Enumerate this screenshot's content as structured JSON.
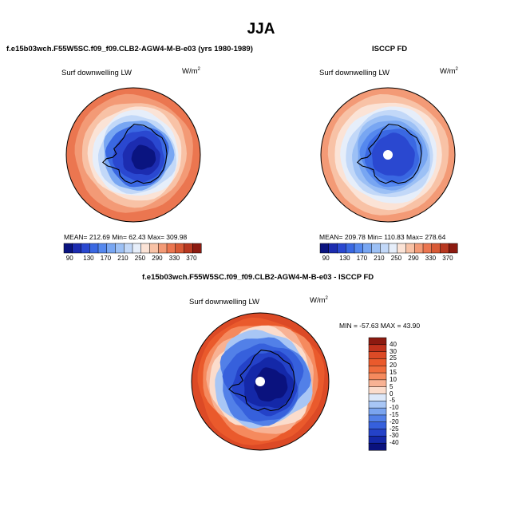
{
  "title": "JJA",
  "panels": {
    "model": {
      "title": "f.e15b03wch.F55W5SC.f09_f09.CLB2-AGW4-M-B-e03 (yrs 1980-1989)",
      "left_label": "Surf downwelling LW",
      "unit_label": "W/m",
      "unit_exp": "2",
      "stats": "MEAN= 212.69   Min=   62.43   Max= 309.98"
    },
    "obs": {
      "title": "ISCCP FD",
      "left_label": "Surf downwelling LW",
      "unit_label": "W/m",
      "unit_exp": "2",
      "stats": "MEAN= 209.78   Min= 110.83   Max= 278.64"
    },
    "diff": {
      "title": "f.e15b03wch.F55W5SC.f09_f09.CLB2-AGW4-M-B-e03 - ISCCP FD",
      "left_label": "Surf downwelling LW",
      "unit_label": "W/m",
      "unit_exp": "2",
      "minmax": "MIN = -57.63  MAX =  43.90"
    }
  },
  "chart_data": [
    {
      "type": "heatmap",
      "projection": "south-polar-stereographic",
      "title": "f.e15b03wch.F55W5SC.f09_f09.CLB2-AGW4-M-B-e03 (yrs 1980-1989)",
      "variable": "Surf downwelling LW",
      "units": "W/m2",
      "mean": 212.69,
      "min": 62.43,
      "max": 309.98,
      "colorbar": {
        "orientation": "horizontal",
        "levels": [
          90,
          110,
          130,
          150,
          170,
          190,
          210,
          230,
          250,
          270,
          290,
          310,
          330,
          350,
          370
        ],
        "tick_labels": [
          "90",
          "130",
          "170",
          "210",
          "250",
          "290",
          "330",
          "370"
        ],
        "colors": [
          "#0a1480",
          "#1c2cb0",
          "#2a48d0",
          "#3a68e2",
          "#5588ee",
          "#78a6f2",
          "#9cc0f5",
          "#c2d8f8",
          "#e6eefa",
          "#fbe3d6",
          "#f8c2a6",
          "#f39a76",
          "#eb7650",
          "#d85a36",
          "#b83820",
          "#8c1a10"
        ]
      }
    },
    {
      "type": "heatmap",
      "projection": "south-polar-stereographic",
      "title": "ISCCP FD",
      "variable": "Surf downwelling LW",
      "units": "W/m2",
      "mean": 209.78,
      "min": 110.83,
      "max": 278.64,
      "colorbar": {
        "orientation": "horizontal",
        "levels": [
          90,
          110,
          130,
          150,
          170,
          190,
          210,
          230,
          250,
          270,
          290,
          310,
          330,
          350,
          370
        ],
        "tick_labels": [
          "90",
          "130",
          "170",
          "210",
          "250",
          "290",
          "330",
          "370"
        ],
        "colors": [
          "#0a1480",
          "#1c2cb0",
          "#2a48d0",
          "#3a68e2",
          "#5588ee",
          "#78a6f2",
          "#9cc0f5",
          "#c2d8f8",
          "#e6eefa",
          "#fbe3d6",
          "#f8c2a6",
          "#f39a76",
          "#eb7650",
          "#d85a36",
          "#b83820",
          "#8c1a10"
        ]
      }
    },
    {
      "type": "heatmap",
      "projection": "south-polar-stereographic",
      "title": "f.e15b03wch.F55W5SC.f09_f09.CLB2-AGW4-M-B-e03 - ISCCP FD",
      "variable": "Surf downwelling LW",
      "units": "W/m2",
      "min": -57.63,
      "max": 43.9,
      "colorbar": {
        "orientation": "vertical",
        "levels": [
          40,
          30,
          25,
          20,
          15,
          10,
          5,
          0,
          -5,
          -10,
          -15,
          -20,
          -25,
          -30,
          -40
        ],
        "tick_labels": [
          "40",
          "30",
          "25",
          "20",
          "15",
          "10",
          "5",
          "0",
          "-5",
          "-10",
          "-15",
          "-20",
          "-25",
          "-30",
          "-40"
        ],
        "colors": [
          "#8c1a10",
          "#c0321c",
          "#dc4a26",
          "#ea5a2c",
          "#f06c3c",
          "#f58a5e",
          "#f8b294",
          "#fbdccc",
          "#dce8fa",
          "#a8c6f5",
          "#7aa4ef",
          "#5280e8",
          "#3660dc",
          "#2442c8",
          "#1428a8",
          "#0a127e"
        ]
      }
    }
  ]
}
